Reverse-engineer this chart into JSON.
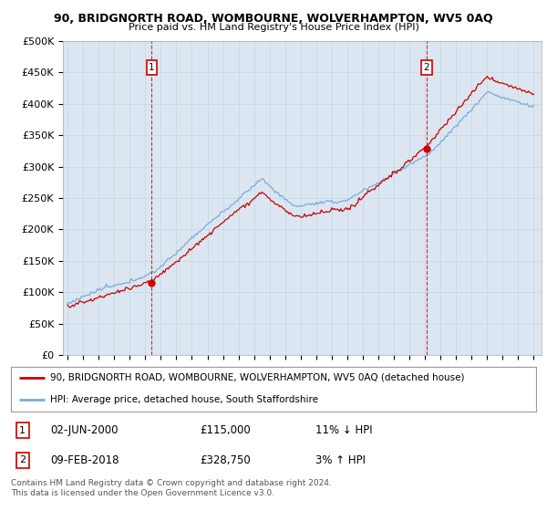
{
  "title": "90, BRIDGNORTH ROAD, WOMBOURNE, WOLVERHAMPTON, WV5 0AQ",
  "subtitle": "Price paid vs. HM Land Registry's House Price Index (HPI)",
  "ylabel_ticks": [
    "£0",
    "£50K",
    "£100K",
    "£150K",
    "£200K",
    "£250K",
    "£300K",
    "£350K",
    "£400K",
    "£450K",
    "£500K"
  ],
  "ytick_values": [
    0,
    50000,
    100000,
    150000,
    200000,
    250000,
    300000,
    350000,
    400000,
    450000,
    500000
  ],
  "ylim": [
    0,
    500000
  ],
  "plot_bg_color": "#dce6f1",
  "hpi_color": "#7aacdc",
  "price_color": "#cc0000",
  "sale1_time": 2000.42,
  "sale1_price": 115000,
  "sale2_time": 2018.1,
  "sale2_price": 328750,
  "sale1_label": "1",
  "sale1_date": "02-JUN-2000",
  "sale1_price_str": "£115,000",
  "sale1_hpi_str": "11% ↓ HPI",
  "sale2_label": "2",
  "sale2_date": "09-FEB-2018",
  "sale2_price_str": "£328,750",
  "sale2_hpi_str": "3% ↑ HPI",
  "legend_line1": "90, BRIDGNORTH ROAD, WOMBOURNE, WOLVERHAMPTON, WV5 0AQ (detached house)",
  "legend_line2": "HPI: Average price, detached house, South Staffordshire",
  "footer": "Contains HM Land Registry data © Crown copyright and database right 2024.\nThis data is licensed under the Open Government Licence v3.0."
}
